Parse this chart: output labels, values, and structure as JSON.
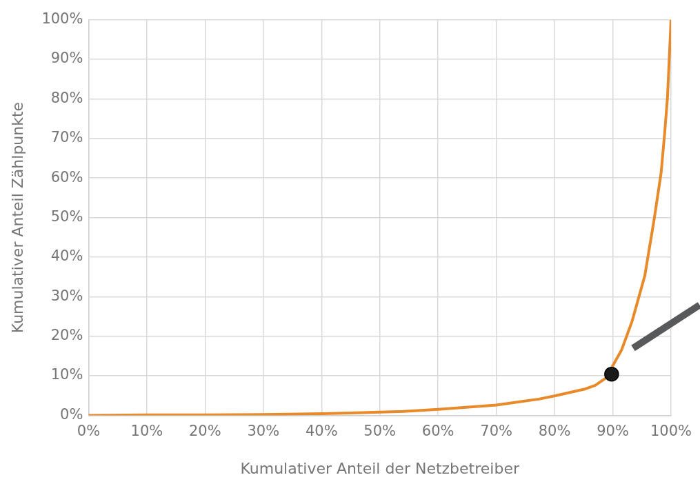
{
  "chart_data": {
    "type": "line",
    "xlabel": "Kumulativer Anteil der Netzbetreiber",
    "ylabel": "Kumulativer Anteil Zählpunkte",
    "xlim": [
      0,
      100
    ],
    "ylim": [
      0,
      100
    ],
    "xticks": [
      {
        "value": 0,
        "label": "0%"
      },
      {
        "value": 10,
        "label": "10%"
      },
      {
        "value": 20,
        "label": "20%"
      },
      {
        "value": 30,
        "label": "30%"
      },
      {
        "value": 40,
        "label": "40%"
      },
      {
        "value": 50,
        "label": "50%"
      },
      {
        "value": 60,
        "label": "60%"
      },
      {
        "value": 70,
        "label": "70%"
      },
      {
        "value": 80,
        "label": "80%"
      },
      {
        "value": 90,
        "label": "90%"
      },
      {
        "value": 100,
        "label": "100%"
      }
    ],
    "yticks": [
      {
        "value": 0,
        "label": "0%"
      },
      {
        "value": 10,
        "label": "10%"
      },
      {
        "value": 20,
        "label": "20%"
      },
      {
        "value": 30,
        "label": "30%"
      },
      {
        "value": 40,
        "label": "40%"
      },
      {
        "value": 50,
        "label": "50%"
      },
      {
        "value": 60,
        "label": "60%"
      },
      {
        "value": 70,
        "label": "70%"
      },
      {
        "value": 80,
        "label": "80%"
      },
      {
        "value": 90,
        "label": "90%"
      },
      {
        "value": 100,
        "label": "100%"
      }
    ],
    "grid": true,
    "marker": "none",
    "line_style": "solid",
    "series": [
      {
        "type": "line",
        "color": "#e8892a",
        "x": [
          0,
          10,
          20,
          30,
          40,
          50,
          54,
          60,
          70,
          77.3,
          80,
          85.1,
          87,
          88.8,
          91.5,
          93.3,
          95.5,
          97.1,
          98.3,
          98.9,
          99.4,
          100
        ],
        "values": [
          0,
          0.1,
          0.1,
          0.2,
          0.4,
          0.8,
          1.0,
          1.5,
          2.6,
          4.1,
          4.9,
          6.6,
          7.6,
          9.4,
          16.5,
          23.7,
          35.3,
          49.5,
          61.3,
          71.2,
          80.5,
          100
        ]
      },
      {
        "type": "scatter",
        "color": "#1a1a1a",
        "marker": "circle",
        "x": [
          89.8
        ],
        "values": [
          10.4
        ]
      }
    ]
  }
}
